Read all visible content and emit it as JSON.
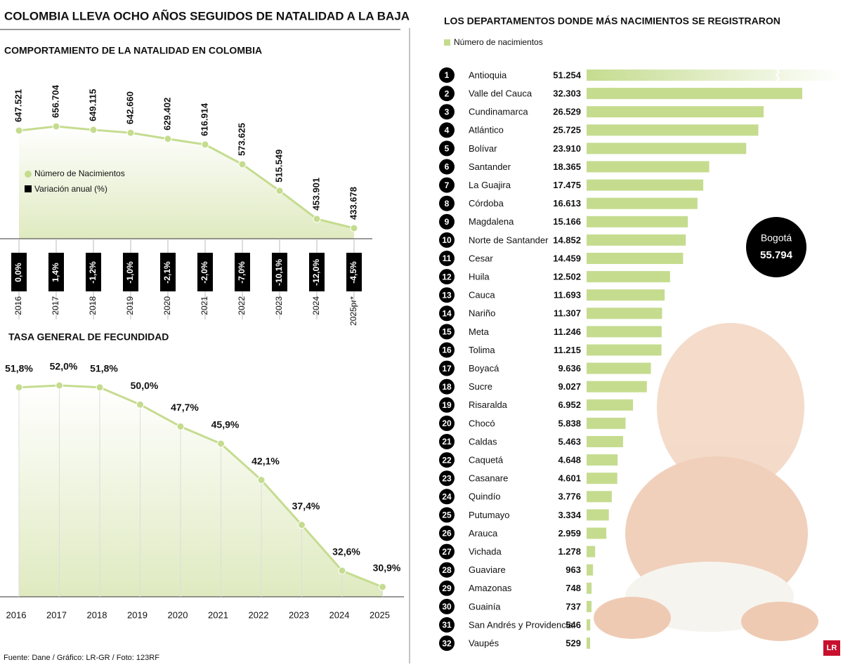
{
  "title": "COLOMBIA LLEVA OCHO AÑOS SEGUIDOS DE NATALIDAD A LA BAJA",
  "source": "Fuente: Dane / Gráfico: LR-GR / Foto: 123RF",
  "logo": "LR",
  "chart_data": [
    {
      "type": "line",
      "title": "COMPORTAMIENTO DE LA NATALIDAD EN COLOMBIA",
      "categories": [
        "2016",
        "2017",
        "2018",
        "2019",
        "2020",
        "2021",
        "2022",
        "2023",
        "2024",
        "2025pr*"
      ],
      "series": [
        {
          "name": "Número de Nacimientos",
          "color": "#c5dc8f",
          "values": [
            647521,
            656704,
            649115,
            642660,
            629402,
            616914,
            573625,
            515549,
            453901,
            433678
          ],
          "value_labels": [
            "647.521",
            "656.704",
            "649.115",
            "642.660",
            "629.402",
            "616.914",
            "573.625",
            "515.549",
            "453.901",
            "433.678"
          ]
        },
        {
          "name": "Variación anual (%)",
          "color": "#000000",
          "values": [
            0.0,
            1.4,
            -1.2,
            -1.0,
            -2.1,
            -2.0,
            -7.0,
            -10.1,
            -12.0,
            -4.5
          ],
          "value_labels": [
            "0,0%",
            "1,4%",
            "-1,2%",
            "-1,0%",
            "-2,1%",
            "-2,0%",
            "-7,0%",
            "-10,1%",
            "-12,0%",
            "-4,5%"
          ]
        }
      ]
    },
    {
      "type": "area",
      "title": "TASA GENERAL DE FECUNDIDAD",
      "categories": [
        "2016",
        "2017",
        "2018",
        "2019",
        "2020",
        "2021",
        "2022",
        "2023",
        "2024",
        "2025"
      ],
      "color": "#c5dc8f",
      "values": [
        51.8,
        52.0,
        51.8,
        50.0,
        47.7,
        45.9,
        42.1,
        37.4,
        32.6,
        30.9
      ],
      "value_labels": [
        "51,8%",
        "52,0%",
        "51,8%",
        "50,0%",
        "47,7%",
        "45,9%",
        "42,1%",
        "37,4%",
        "32,6%",
        "30,9%"
      ]
    },
    {
      "type": "bar",
      "title": "LOS DEPARTAMENTOS DONDE MÁS NACIMIENTOS SE REGISTRARON",
      "ranks": [
        1,
        2,
        3,
        4,
        5,
        6,
        7,
        8,
        9,
        10,
        11,
        12,
        13,
        14,
        15,
        16,
        17,
        18,
        19,
        20,
        21,
        22,
        23,
        24,
        25,
        26,
        27,
        28,
        29,
        30,
        31,
        32
      ],
      "categories": [
        "Antioquia",
        "Valle del Cauca",
        "Cundinamarca",
        "Atlántico",
        "Bolívar",
        "Santander",
        "La Guajira",
        "Córdoba",
        "Magdalena",
        "Norte de Santander",
        "Cesar",
        "Huila",
        "Cauca",
        "Nariño",
        "Meta",
        "Tolima",
        "Boyacá",
        "Sucre",
        "Risaralda",
        "Chocó",
        "Caldas",
        "Caquetá",
        "Casanare",
        "Quindío",
        "Putumayo",
        "Arauca",
        "Vichada",
        "Guaviare",
        "Amazonas",
        "Guainía",
        "San Andrés y Providencia",
        "Vaupés"
      ],
      "series": [
        {
          "name": "Número de nacimientos",
          "color": "#c5dc8f",
          "values": [
            51254,
            32303,
            26529,
            25725,
            23910,
            18365,
            17475,
            16613,
            15166,
            14852,
            14459,
            12502,
            11693,
            11307,
            11246,
            11215,
            9636,
            9027,
            6952,
            5838,
            5463,
            4648,
            4601,
            3776,
            3334,
            2959,
            1278,
            963,
            748,
            737,
            546,
            529
          ],
          "value_labels": [
            "51.254",
            "32.303",
            "26.529",
            "25.725",
            "23.910",
            "18.365",
            "17.475",
            "16.613",
            "15.166",
            "14.852",
            "14.459",
            "12.502",
            "11.693",
            "11.307",
            "11.246",
            "11.215",
            "9.636",
            "9.027",
            "6.952",
            "5.838",
            "5.463",
            "4.648",
            "4.601",
            "3.776",
            "3.334",
            "2.959",
            "1.278",
            "963",
            "748",
            "737",
            "546",
            "529"
          ]
        }
      ],
      "annotation": {
        "label": "Bogotá",
        "value": 55794,
        "value_label": "55.794"
      }
    }
  ]
}
